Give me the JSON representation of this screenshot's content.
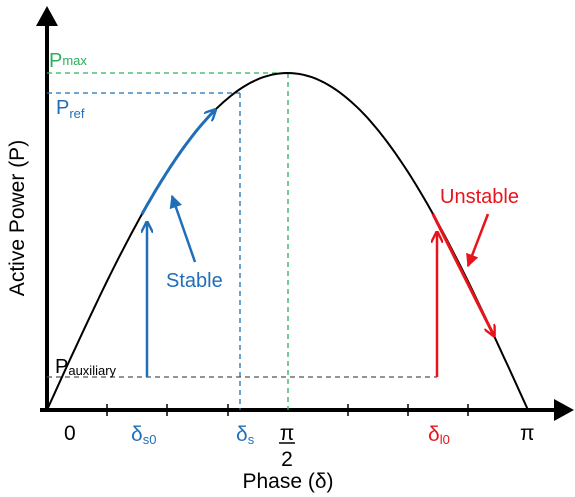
{
  "colors": {
    "axis": "#000000",
    "curve": "#000000",
    "stable": "#1f6fb8",
    "unstable": "#e8141b",
    "pmax": "#2bb15a",
    "guide": "#555555"
  },
  "labels": {
    "pmax_main": "P",
    "pmax_sub": "max",
    "pref_main": "P",
    "pref_sub": "ref",
    "paux_main": "P",
    "paux_sub": "auxiliary",
    "stable": "Stable",
    "unstable": "Unstable",
    "y_axis_title": "Active Power (P)",
    "x_axis_title": "Phase (δ)"
  },
  "ticks": {
    "zero": "0",
    "ds0_main": "δ",
    "ds0_sub": "s0",
    "ds_main": "δ",
    "ds_sub": "s",
    "pi_half_num": "π",
    "pi_half_den": "2",
    "dl0_main": "δ",
    "dl0_sub": "l0",
    "pi": "π"
  },
  "chart_data": {
    "type": "line",
    "curve": "P = Pmax · sin(δ), δ ∈ [0, π]",
    "x_range_rad": [
      0,
      3.1416
    ],
    "y_range_norm": [
      0,
      1
    ],
    "levels": {
      "P_max": 1.0,
      "P_ref": 0.955,
      "P_auxiliary": 0.1
    },
    "points": {
      "delta_s0_rad": 0.62,
      "delta_s_rad": 1.27,
      "delta_l0_rad": 2.52
    }
  }
}
